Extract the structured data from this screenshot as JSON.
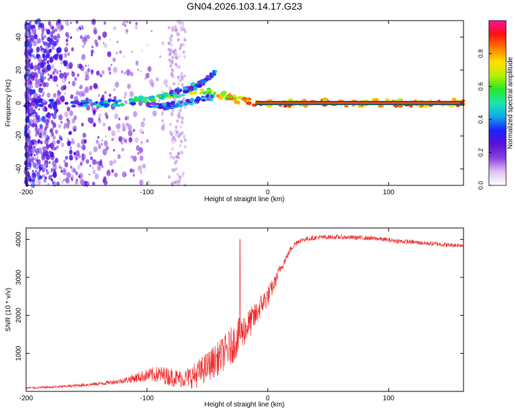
{
  "title": "GN04.2026.103.14.17.G23",
  "colors": {
    "snr_line": "#ee2b2b",
    "spectrum_core": "#ff1f1f",
    "colormap": [
      "#ffffff",
      "#e0c4f2",
      "#8a3fe0",
      "#5a10d8",
      "#1a20ff",
      "#14a8e8",
      "#18e6b0",
      "#28e628",
      "#b8f000",
      "#ffe000",
      "#ff7a00",
      "#ff1010",
      "#ff10a0"
    ]
  },
  "chart_data": [
    {
      "type": "heatmap",
      "name": "spectrogram",
      "xlabel": "Height of straight line (km)",
      "ylabel": "Frequency (Hz)",
      "xlim": [
        -200,
        162
      ],
      "ylim": [
        -50,
        50
      ],
      "xticks": [
        -200,
        -100,
        0,
        100
      ],
      "yticks": [
        -40,
        -20,
        0,
        20,
        40
      ],
      "colorbar": {
        "label": "Normalized spectral amplitude",
        "range": [
          0,
          1
        ],
        "ticks": [
          0.0,
          0.2,
          0.4,
          0.6,
          0.8
        ]
      },
      "ridges": [
        {
          "name": "main",
          "points": [
            [
              -200,
              0
            ],
            [
              -150,
              0
            ],
            [
              -120,
              0.5
            ],
            [
              -100,
              2
            ],
            [
              -85,
              4
            ],
            [
              -70,
              6
            ],
            [
              -55,
              8
            ],
            [
              -40,
              5
            ],
            [
              -30,
              3
            ],
            [
              -20,
              1
            ],
            [
              -10,
              0
            ],
            [
              0,
              0
            ],
            [
              162,
              0
            ]
          ]
        },
        {
          "name": "upper",
          "points": [
            [
              -80,
              6
            ],
            [
              -65,
              9
            ],
            [
              -55,
              12
            ],
            [
              -45,
              17
            ],
            [
              -42,
              22
            ]
          ]
        },
        {
          "name": "lower",
          "points": [
            [
              -100,
              -1
            ],
            [
              -85,
              -2
            ],
            [
              -70,
              0
            ],
            [
              -55,
              2
            ],
            [
              -45,
              4
            ]
          ]
        }
      ],
      "strong_line": {
        "from": -10,
        "to": 162,
        "frequency": 0,
        "amplitude": 1.0
      }
    },
    {
      "type": "line",
      "name": "snr",
      "xlabel": "Height of straight line (km)",
      "ylabel": "SNR (10 * v/v)",
      "xlim": [
        -200,
        162
      ],
      "ylim": [
        0,
        4300
      ],
      "xticks": [
        -200,
        -100,
        0,
        100
      ],
      "yticks": [
        1000,
        2000,
        3000,
        4000
      ],
      "series": [
        {
          "name": "SNR",
          "x": [
            -200,
            -180,
            -160,
            -140,
            -120,
            -110,
            -100,
            -90,
            -80,
            -70,
            -60,
            -50,
            -40,
            -30,
            -25,
            -20,
            -15,
            -10,
            -5,
            0,
            5,
            10,
            15,
            20,
            25,
            30,
            40,
            50,
            60,
            70,
            80,
            90,
            100,
            110,
            120,
            130,
            140,
            150,
            162
          ],
          "y": [
            90,
            110,
            150,
            200,
            280,
            350,
            420,
            450,
            380,
            330,
            420,
            650,
            900,
            1200,
            1400,
            1600,
            1800,
            2000,
            2300,
            2500,
            2800,
            3200,
            3500,
            3800,
            3950,
            4000,
            4050,
            4060,
            4060,
            4050,
            4040,
            4020,
            3980,
            3950,
            3930,
            3900,
            3880,
            3850,
            3850
          ],
          "spread": [
            60,
            60,
            80,
            100,
            140,
            250,
            350,
            450,
            500,
            450,
            700,
            800,
            900,
            1000,
            1000,
            900,
            800,
            700,
            600,
            550,
            400,
            300,
            200,
            180,
            150,
            130,
            120,
            120,
            120,
            120,
            120,
            120,
            120,
            120,
            120,
            120,
            120,
            120,
            120
          ]
        }
      ],
      "spikes": [
        {
          "x": -23,
          "y": 4000
        }
      ]
    }
  ]
}
